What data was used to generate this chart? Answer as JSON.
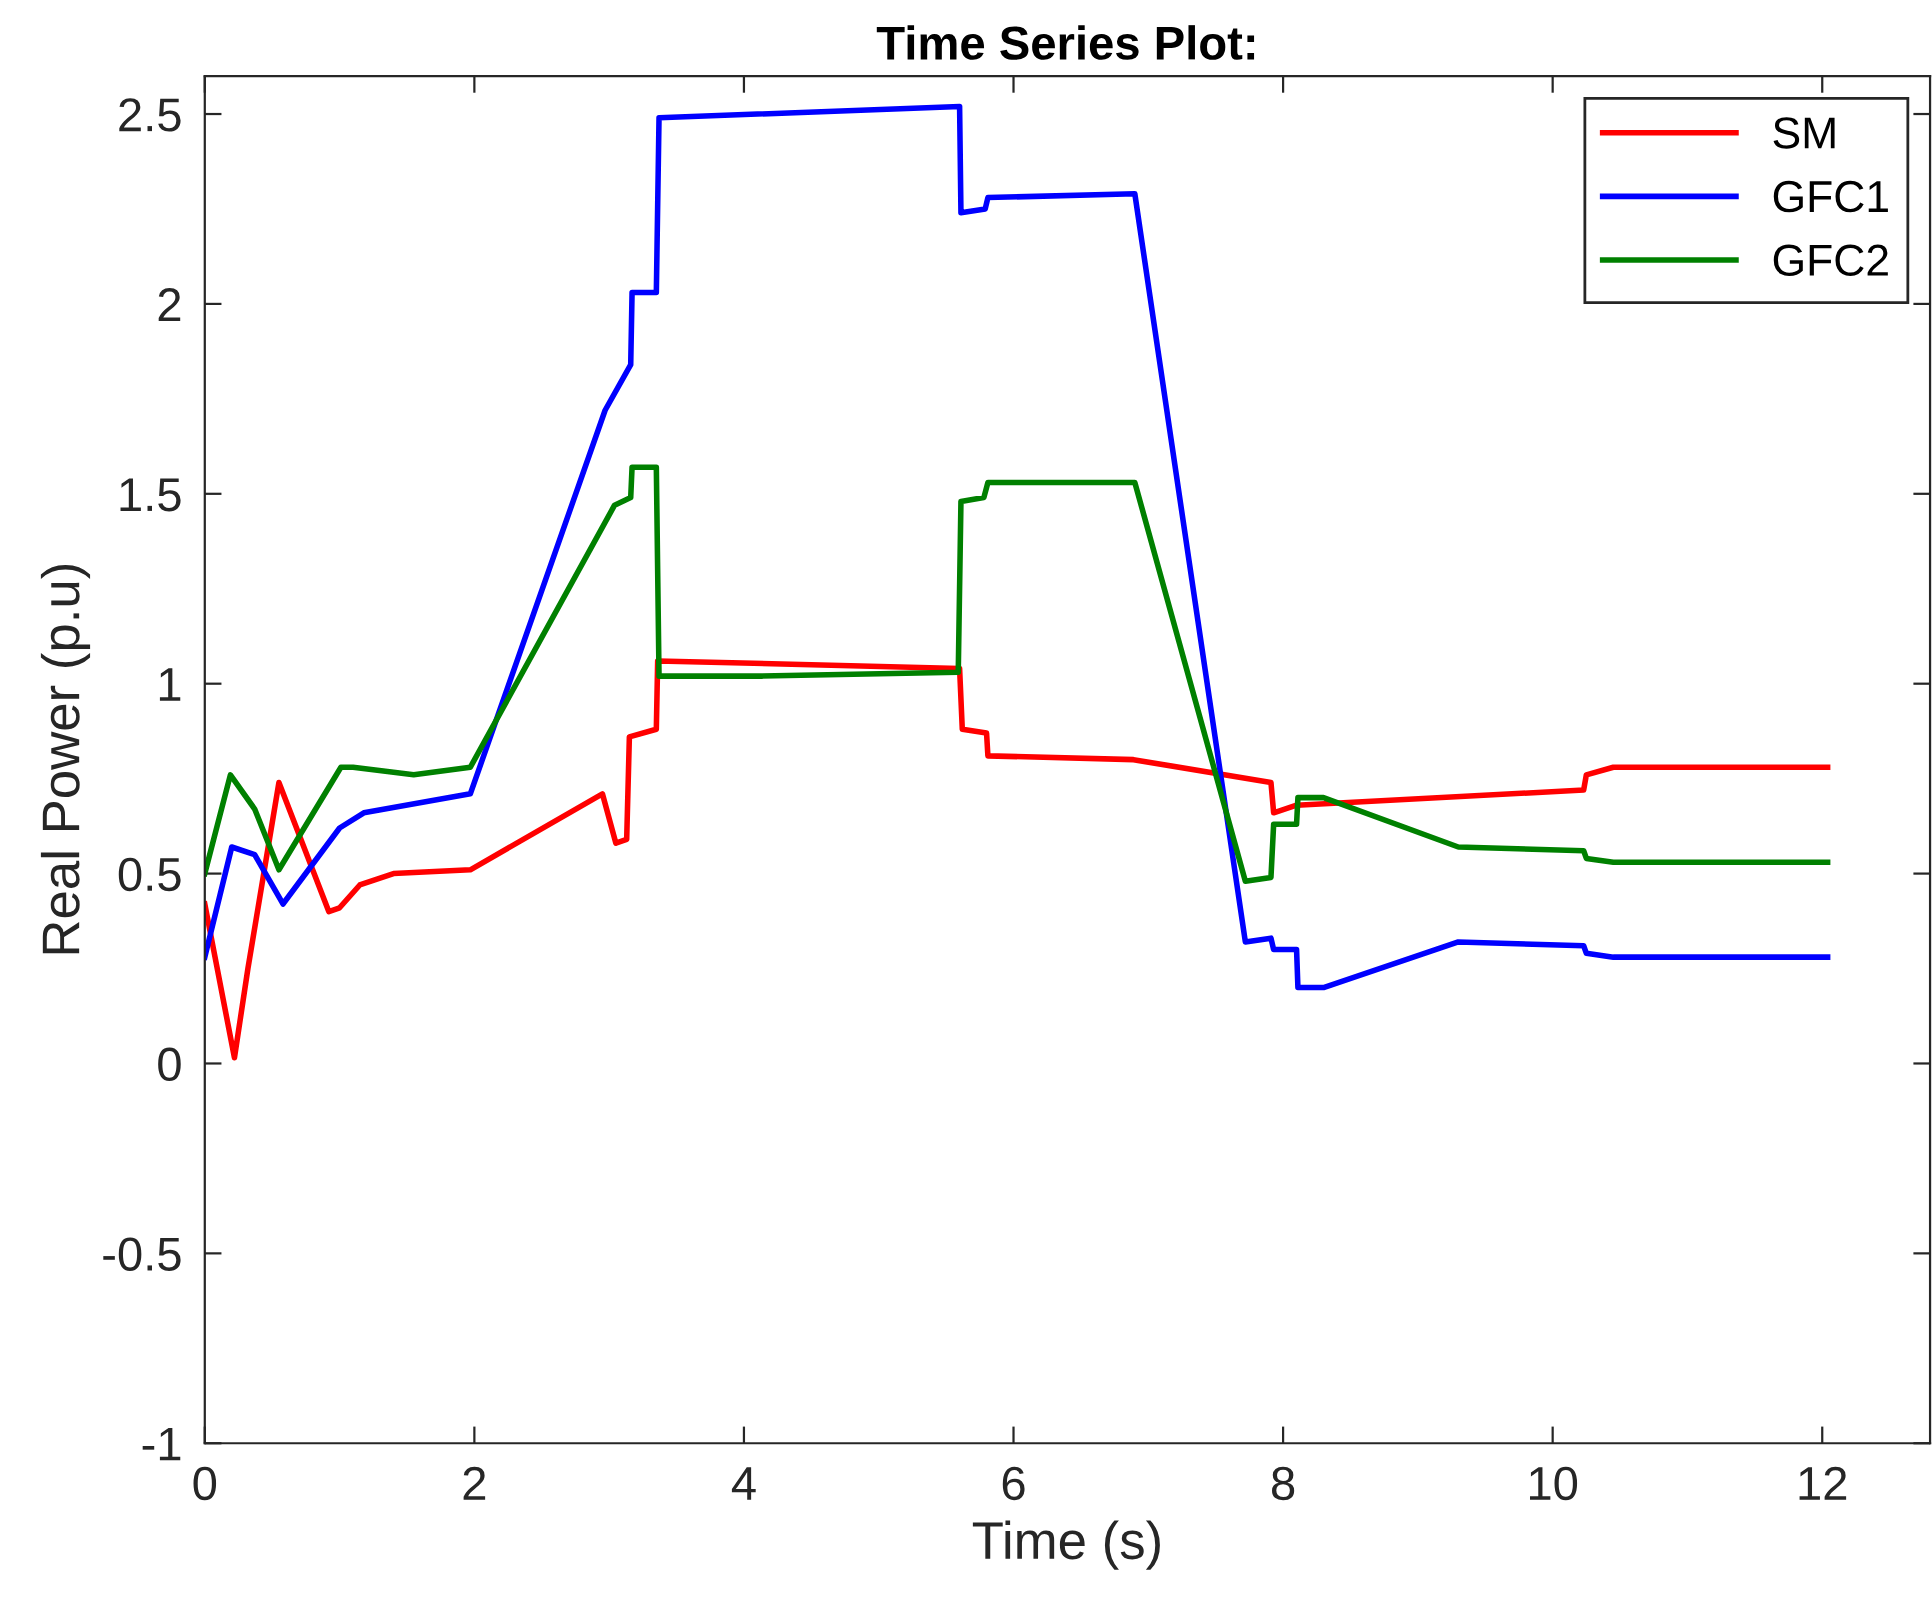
{
  "chart_data": {
    "type": "line",
    "title": "Time Series Plot:",
    "xlabel": "Time (s)",
    "ylabel": "Real Power (p.u)",
    "xlim": [
      0,
      12.8
    ],
    "xticks": [
      0,
      2,
      4,
      6,
      8,
      10,
      12
    ],
    "ylim": [
      -1,
      2.6
    ],
    "yticks": [
      -1,
      -0.5,
      0,
      0.5,
      1,
      1.5,
      2,
      2.5
    ],
    "grid": false,
    "legend": "top right",
    "line_style": "solid",
    "marker": "none",
    "series": [
      {
        "name": "SM",
        "color": "#ff0000",
        "x": [
          0,
          0.22,
          0.32,
          0.55,
          0.92,
          1.0,
          1.15,
          1.4,
          1.97,
          2.95,
          3.05,
          3.13,
          3.15,
          3.35,
          3.36,
          5.6,
          5.62,
          5.8,
          5.81,
          6.89,
          7.91,
          7.93,
          8.1,
          10.23,
          10.25,
          10.45,
          12.04
        ],
        "values": [
          0.42,
          0.015,
          0.25,
          0.74,
          0.4,
          0.41,
          0.47,
          0.5,
          0.51,
          0.71,
          0.58,
          0.59,
          0.86,
          0.88,
          1.06,
          1.04,
          0.88,
          0.87,
          0.81,
          0.8,
          0.74,
          0.66,
          0.68,
          0.72,
          0.76,
          0.78,
          0.78
        ]
      },
      {
        "name": "GFC1",
        "color": "#0000ff",
        "x": [
          0,
          0.2,
          0.37,
          0.58,
          1.0,
          1.18,
          1.97,
          2.97,
          3.16,
          3.17,
          3.35,
          3.37,
          5.6,
          5.61,
          5.79,
          5.81,
          6.9,
          7.72,
          7.91,
          7.93,
          8.1,
          8.11,
          8.3,
          9.3,
          10.23,
          10.25,
          10.45,
          12.04
        ],
        "values": [
          0.28,
          0.57,
          0.55,
          0.42,
          0.62,
          0.66,
          0.71,
          1.72,
          1.84,
          2.03,
          2.03,
          2.49,
          2.52,
          2.24,
          2.25,
          2.28,
          2.29,
          0.32,
          0.33,
          0.3,
          0.3,
          0.2,
          0.2,
          0.32,
          0.31,
          0.29,
          0.28,
          0.28
        ]
      },
      {
        "name": "GFC2",
        "color": "#008000",
        "x": [
          0,
          0.19,
          0.37,
          0.55,
          1.01,
          1.1,
          1.55,
          1.97,
          3.04,
          3.16,
          3.17,
          3.35,
          3.37,
          4.13,
          5.59,
          5.61,
          5.78,
          5.81,
          6.9,
          7.72,
          7.91,
          7.93,
          8.1,
          8.11,
          8.3,
          9.3,
          10.23,
          10.25,
          10.45,
          12.04
        ],
        "values": [
          0.5,
          0.76,
          0.67,
          0.51,
          0.78,
          0.78,
          0.76,
          0.78,
          1.47,
          1.49,
          1.57,
          1.57,
          1.02,
          1.02,
          1.03,
          1.48,
          1.49,
          1.53,
          1.53,
          0.48,
          0.49,
          0.63,
          0.63,
          0.7,
          0.7,
          0.57,
          0.56,
          0.54,
          0.53,
          0.53
        ]
      }
    ]
  }
}
